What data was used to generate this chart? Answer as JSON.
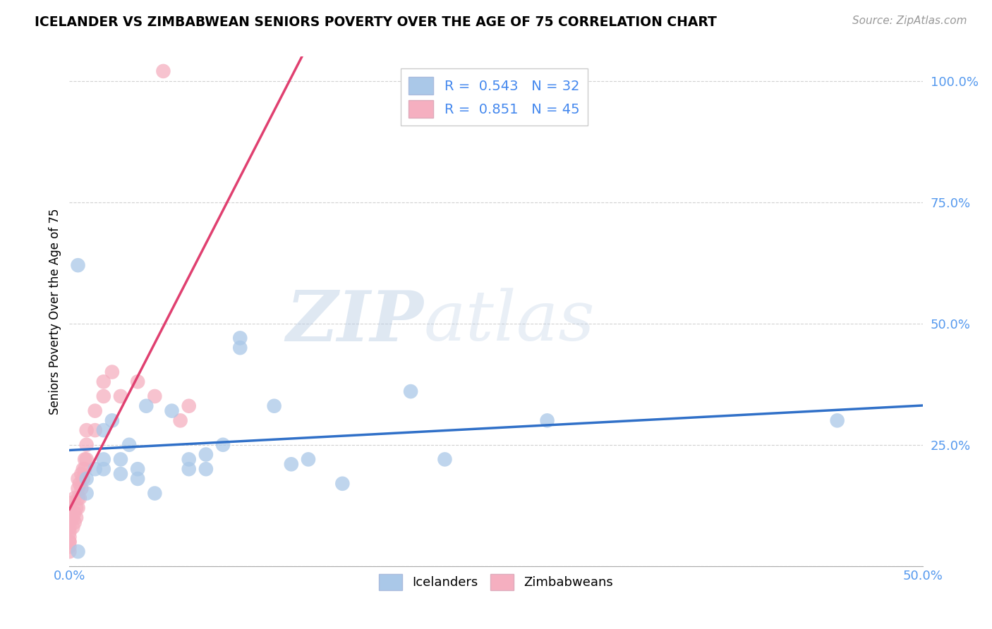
{
  "title": "ICELANDER VS ZIMBABWEAN SENIORS POVERTY OVER THE AGE OF 75 CORRELATION CHART",
  "source": "Source: ZipAtlas.com",
  "ylabel": "Seniors Poverty Over the Age of 75",
  "xlim": [
    0.0,
    0.5
  ],
  "ylim": [
    0.0,
    1.05
  ],
  "xticks": [
    0.0,
    0.1,
    0.2,
    0.3,
    0.4,
    0.5
  ],
  "xticklabels": [
    "0.0%",
    "",
    "",
    "",
    "",
    "50.0%"
  ],
  "yticks": [
    0.0,
    0.25,
    0.5,
    0.75,
    1.0
  ],
  "yticklabels": [
    "",
    "25.0%",
    "50.0%",
    "75.0%",
    "100.0%"
  ],
  "blue_R": 0.543,
  "blue_N": 32,
  "pink_R": 0.851,
  "pink_N": 45,
  "blue_color": "#aac8e8",
  "pink_color": "#f5afc0",
  "blue_line_color": "#3070c8",
  "pink_line_color": "#e04070",
  "watermark_zip": "ZIP",
  "watermark_atlas": "atlas",
  "icelanders_x": [
    0.005,
    0.005,
    0.01,
    0.01,
    0.015,
    0.02,
    0.02,
    0.02,
    0.025,
    0.03,
    0.03,
    0.035,
    0.04,
    0.04,
    0.045,
    0.05,
    0.06,
    0.07,
    0.07,
    0.08,
    0.08,
    0.09,
    0.1,
    0.1,
    0.12,
    0.13,
    0.14,
    0.16,
    0.2,
    0.22,
    0.28,
    0.45
  ],
  "icelanders_y": [
    0.03,
    0.62,
    0.15,
    0.18,
    0.2,
    0.2,
    0.22,
    0.28,
    0.3,
    0.19,
    0.22,
    0.25,
    0.18,
    0.2,
    0.33,
    0.15,
    0.32,
    0.2,
    0.22,
    0.2,
    0.23,
    0.25,
    0.45,
    0.47,
    0.33,
    0.21,
    0.22,
    0.17,
    0.36,
    0.22,
    0.3,
    0.3
  ],
  "zimbabweans_x": [
    0.0,
    0.0,
    0.0,
    0.0,
    0.0,
    0.0,
    0.0,
    0.0,
    0.0,
    0.0,
    0.0,
    0.0,
    0.002,
    0.002,
    0.003,
    0.003,
    0.003,
    0.004,
    0.004,
    0.005,
    0.005,
    0.005,
    0.005,
    0.006,
    0.006,
    0.007,
    0.007,
    0.008,
    0.008,
    0.009,
    0.009,
    0.01,
    0.01,
    0.01,
    0.015,
    0.015,
    0.02,
    0.02,
    0.025,
    0.03,
    0.04,
    0.05,
    0.055,
    0.065,
    0.07
  ],
  "zimbabweans_y": [
    0.03,
    0.04,
    0.05,
    0.05,
    0.06,
    0.07,
    0.08,
    0.09,
    0.1,
    0.11,
    0.12,
    0.13,
    0.08,
    0.1,
    0.09,
    0.11,
    0.14,
    0.1,
    0.12,
    0.12,
    0.14,
    0.16,
    0.18,
    0.14,
    0.17,
    0.16,
    0.19,
    0.18,
    0.2,
    0.2,
    0.22,
    0.22,
    0.25,
    0.28,
    0.28,
    0.32,
    0.35,
    0.38,
    0.4,
    0.35,
    0.38,
    0.35,
    1.02,
    0.3,
    0.33
  ]
}
